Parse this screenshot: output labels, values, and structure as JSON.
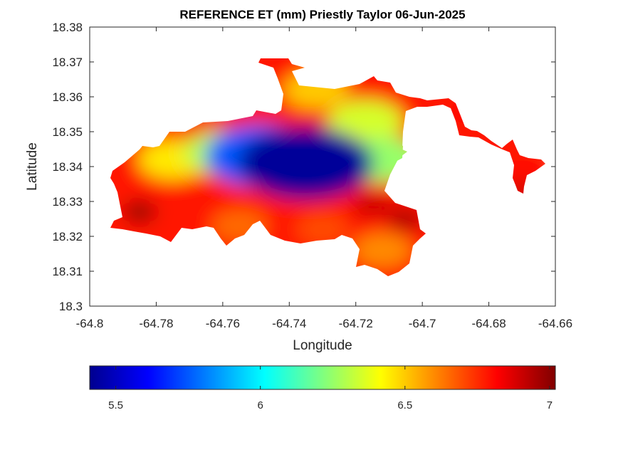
{
  "chart_data": {
    "type": "heatmap",
    "title": "REFERENCE ET (mm) Priestly Taylor 06-Jun-2025",
    "xlabel": "Longitude",
    "ylabel": "Latitude",
    "xlim": [
      -64.8,
      -64.66
    ],
    "ylim": [
      18.3,
      18.38
    ],
    "xticks": [
      -64.8,
      -64.78,
      -64.76,
      -64.74,
      -64.72,
      -64.7,
      -64.68,
      -64.66
    ],
    "xtick_labels": [
      "-64.8",
      "-64.78",
      "-64.76",
      "-64.74",
      "-64.72",
      "-64.7",
      "-64.68",
      "-64.66"
    ],
    "yticks": [
      18.3,
      18.31,
      18.32,
      18.33,
      18.34,
      18.35,
      18.36,
      18.37,
      18.38
    ],
    "ytick_labels": [
      "18.3",
      "18.31",
      "18.32",
      "18.33",
      "18.34",
      "18.35",
      "18.36",
      "18.37",
      "18.38"
    ],
    "colormap": "jet",
    "colorbar": {
      "orientation": "horizontal",
      "placement": "bottom",
      "range": [
        5.41,
        7.02
      ],
      "ticks": [
        5.5,
        6,
        6.5,
        7
      ],
      "tick_labels": [
        "5.5",
        "6",
        "6.5",
        "7"
      ]
    },
    "features": [
      {
        "lon": -64.735,
        "lat": 18.341,
        "value": 5.45
      },
      {
        "lon": -64.748,
        "lat": 18.343,
        "value": 5.75
      },
      {
        "lon": -64.76,
        "lat": 18.344,
        "value": 6.3
      },
      {
        "lon": -64.717,
        "lat": 18.353,
        "value": 6.35
      },
      {
        "lon": -64.712,
        "lat": 18.342,
        "value": 6.25
      },
      {
        "lon": -64.775,
        "lat": 18.342,
        "value": 6.45
      },
      {
        "lon": -64.732,
        "lat": 18.362,
        "value": 6.5
      },
      {
        "lon": -64.785,
        "lat": 18.327,
        "value": 7.0
      },
      {
        "lon": -64.778,
        "lat": 18.339,
        "value": 6.75
      },
      {
        "lon": -64.715,
        "lat": 18.329,
        "value": 6.9
      },
      {
        "lon": -64.73,
        "lat": 18.322,
        "value": 6.7
      },
      {
        "lon": -64.705,
        "lat": 18.325,
        "value": 6.95
      },
      {
        "lon": -64.755,
        "lat": 18.323,
        "value": 6.65
      },
      {
        "lon": -64.712,
        "lat": 18.316,
        "value": 6.6
      },
      {
        "lon": -64.738,
        "lat": 18.369,
        "value": 6.8
      },
      {
        "lon": -64.685,
        "lat": 18.356,
        "value": 6.8
      },
      {
        "lon": -64.671,
        "lat": 18.338,
        "value": 6.8
      },
      {
        "lon": -64.67,
        "lat": 18.334,
        "value": 6.95
      }
    ]
  }
}
